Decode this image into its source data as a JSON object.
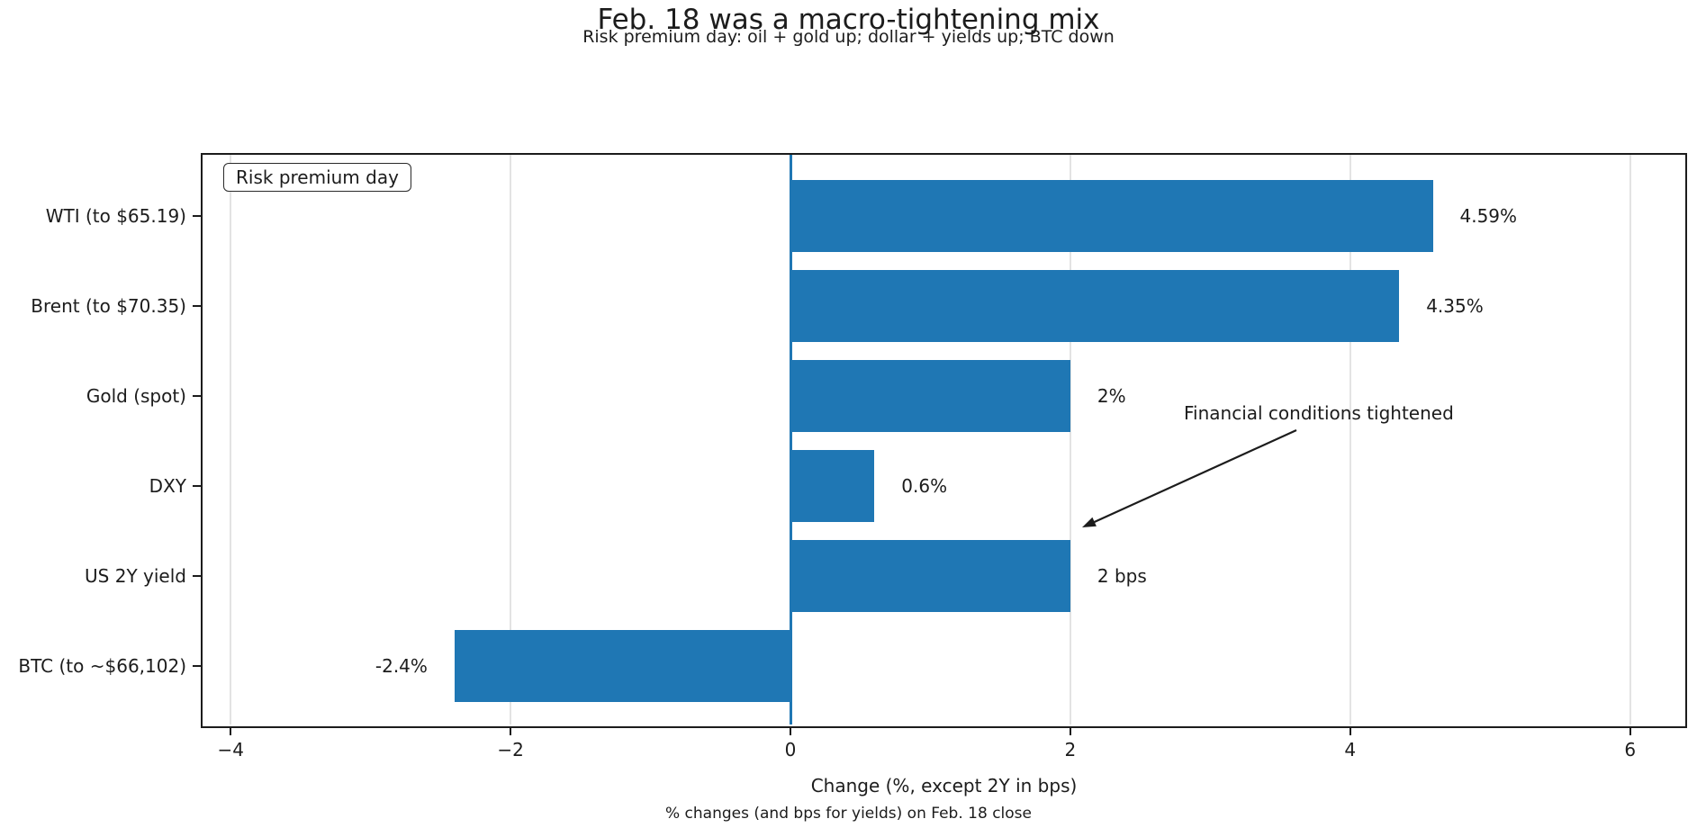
{
  "title": "Feb. 18 was a macro-tightening mix",
  "subtitle": "Risk premium day: oil + gold up; dollar + yields up; BTC down",
  "footer": "% changes (and bps for yields) on Feb. 18 close",
  "legend": {
    "label": "Risk premium day"
  },
  "annotation": {
    "text": "Financial conditions tightened"
  },
  "chart_data": {
    "type": "bar",
    "orientation": "horizontal",
    "title": "Feb. 18 was a macro-tightening mix",
    "subtitle": "Risk premium day: oil + gold up; dollar + yields up; BTC down",
    "categories": [
      "WTI (to $65.19)",
      "Brent (to $70.35)",
      "Gold (spot)",
      "DXY",
      "US 2Y yield",
      "BTC (to ~$66,102)"
    ],
    "values": [
      4.59,
      4.35,
      2,
      0.6,
      2,
      -2.4
    ],
    "value_labels": [
      "4.59%",
      "4.35%",
      "2%",
      "0.6%",
      "2 bps",
      "-2.4%"
    ],
    "xlabel": "Change (%, except 2Y in bps)",
    "ylabel": "",
    "xticks": [
      -4,
      -2,
      0,
      2,
      4,
      6
    ],
    "xtick_labels": [
      "−4",
      "−2",
      "0",
      "2",
      "4",
      "6"
    ],
    "xlim": [
      -4.21,
      6.4
    ],
    "grid": true,
    "gridlines": "vertical",
    "legend_entries": [
      "Risk premium day"
    ],
    "legend_position": "upper left",
    "annotations": [
      "Financial conditions tightened"
    ],
    "zero_reference_line": 0,
    "bar_color": "#1f77b4",
    "zero_line_color": "#1f77b4",
    "caption": "% changes (and bps for yields) on Feb. 18 close"
  },
  "colors": {
    "bar": "#1f77b4",
    "zero_line": "#1f77b4",
    "grid": "#e3e3e3",
    "spine": "#1c1c1c",
    "text": "#1c1c1c"
  }
}
